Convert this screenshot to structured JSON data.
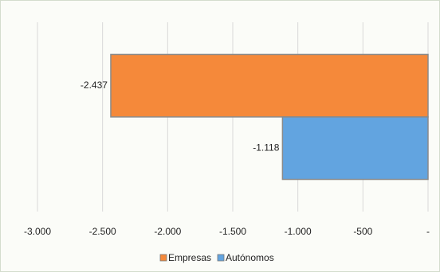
{
  "chart_data": {
    "type": "hbar",
    "categories": [
      null
    ],
    "series": [
      {
        "name": "Empresas",
        "color": "#f5893a",
        "values": [
          -2437
        ],
        "value_labels": [
          "-2.437"
        ]
      },
      {
        "name": "Autónomos",
        "color": "#62a4e0",
        "values": [
          -1118
        ],
        "value_labels": [
          "-1.118"
        ]
      }
    ],
    "xlim": [
      -3000,
      0
    ],
    "xticks": [
      {
        "value": -3000,
        "label": "-3.000"
      },
      {
        "value": -2500,
        "label": "-2.500"
      },
      {
        "value": -2000,
        "label": "-2.000"
      },
      {
        "value": -1500,
        "label": "-1.500"
      },
      {
        "value": -1000,
        "label": "-1.000"
      },
      {
        "value": -500,
        "label": "-500"
      },
      {
        "value": 0,
        "label": "-"
      }
    ],
    "grid": true,
    "legend": "bottom"
  }
}
